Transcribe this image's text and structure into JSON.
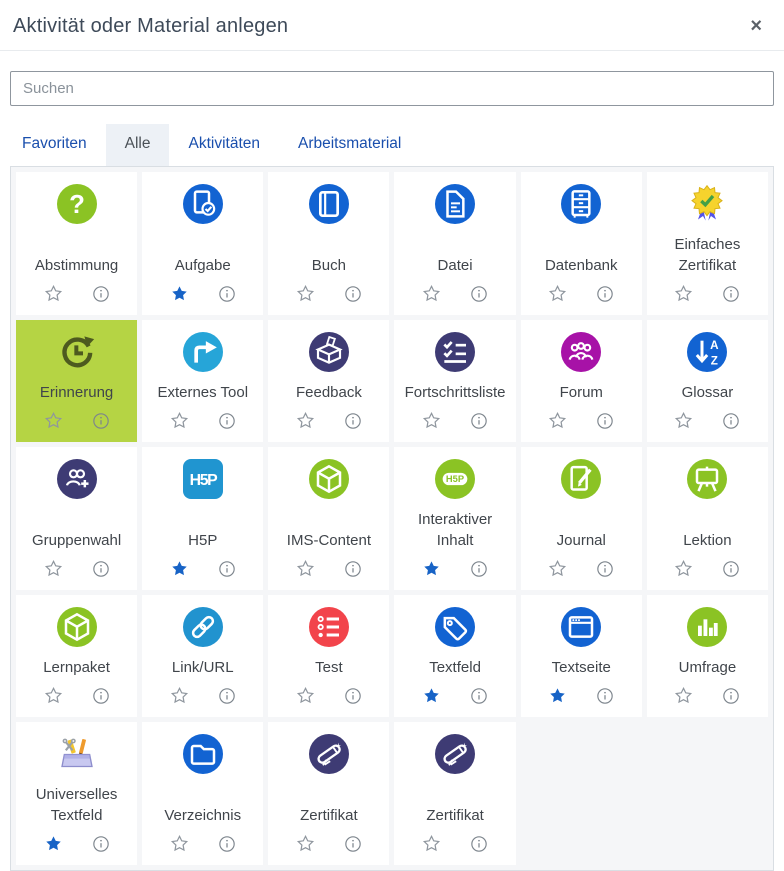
{
  "dialog": {
    "title": "Aktivität oder Material anlegen",
    "close_label": "×"
  },
  "search": {
    "placeholder": "Suchen",
    "value": ""
  },
  "tabs": [
    {
      "label": "Favoriten",
      "active": false
    },
    {
      "label": "Alle",
      "active": true
    },
    {
      "label": "Aktivitäten",
      "active": false
    },
    {
      "label": "Arbeitsmaterial",
      "active": false
    }
  ],
  "colors": {
    "accent_blue": "#1263d2",
    "light_blue": "#26a5d8",
    "link_blue": "#2193cf",
    "green": "#8bc324",
    "indigo": "#3e3b74",
    "magenta": "#a712a7",
    "red": "#f2444b",
    "h5p_blue": "#2095d0",
    "selected_tile_bg": "#b5d444",
    "selected_icon": "#4d5a1f",
    "favourite_star": "#1763c6",
    "tab_link": "#1a4fad"
  },
  "tiles": [
    {
      "label": "Abstimmung",
      "icon": "question-icon",
      "shape": "circle",
      "bg": "#8bc324",
      "favourite": false,
      "selected": false
    },
    {
      "label": "Aufgabe",
      "icon": "assignment-icon",
      "shape": "circle",
      "bg": "#1263d2",
      "favourite": true,
      "selected": false
    },
    {
      "label": "Buch",
      "icon": "book-icon",
      "shape": "circle",
      "bg": "#1263d2",
      "favourite": false,
      "selected": false
    },
    {
      "label": "Datei",
      "icon": "file-icon",
      "shape": "circle",
      "bg": "#1263d2",
      "favourite": false,
      "selected": false
    },
    {
      "label": "Datenbank",
      "icon": "database-icon",
      "shape": "circle",
      "bg": "#1263d2",
      "favourite": false,
      "selected": false
    },
    {
      "label": "Einfaches Zertifikat",
      "icon": "medal-check-icon",
      "shape": "plain",
      "bg": "",
      "favourite": false,
      "selected": false
    },
    {
      "label": "Erinnerung",
      "icon": "clock-history-icon",
      "shape": "plain",
      "bg": "#4d5a1f",
      "favourite": false,
      "selected": true
    },
    {
      "label": "Externes Tool",
      "icon": "external-arrow-icon",
      "shape": "circle",
      "bg": "#26a5d8",
      "favourite": false,
      "selected": false
    },
    {
      "label": "Feedback",
      "icon": "ballot-box-icon",
      "shape": "circle",
      "bg": "#3e3b74",
      "favourite": false,
      "selected": false
    },
    {
      "label": "Fortschrittsliste",
      "icon": "checklist-icon",
      "shape": "circle",
      "bg": "#3e3b74",
      "favourite": false,
      "selected": false
    },
    {
      "label": "Forum",
      "icon": "people-icon",
      "shape": "circle",
      "bg": "#a712a7",
      "favourite": false,
      "selected": false
    },
    {
      "label": "Glossar",
      "icon": "sort-az-icon",
      "shape": "circle",
      "bg": "#1263d2",
      "favourite": false,
      "selected": false
    },
    {
      "label": "Gruppenwahl",
      "icon": "group-plus-icon",
      "shape": "circle",
      "bg": "#3e3b74",
      "favourite": false,
      "selected": false
    },
    {
      "label": "H5P",
      "icon": "h5p-logo-icon",
      "shape": "square",
      "bg": "#2095d0",
      "favourite": true,
      "selected": false
    },
    {
      "label": "IMS-Content",
      "icon": "cube-icon",
      "shape": "circle",
      "bg": "#8bc324",
      "favourite": false,
      "selected": false
    },
    {
      "label": "Interaktiver Inhalt",
      "icon": "h5p-badge-icon",
      "shape": "circle",
      "bg": "#8bc324",
      "favourite": true,
      "selected": false
    },
    {
      "label": "Journal",
      "icon": "note-pencil-icon",
      "shape": "circle",
      "bg": "#8bc324",
      "favourite": false,
      "selected": false
    },
    {
      "label": "Lektion",
      "icon": "easel-icon",
      "shape": "circle",
      "bg": "#8bc324",
      "favourite": false,
      "selected": false
    },
    {
      "label": "Lernpaket",
      "icon": "package-cube-icon",
      "shape": "circle",
      "bg": "#8bc324",
      "favourite": false,
      "selected": false
    },
    {
      "label": "Link/URL",
      "icon": "chain-link-icon",
      "shape": "circle",
      "bg": "#2193cf",
      "favourite": false,
      "selected": false
    },
    {
      "label": "Test",
      "icon": "list-icon",
      "shape": "circle",
      "bg": "#f2444b",
      "favourite": false,
      "selected": false
    },
    {
      "label": "Textfeld",
      "icon": "tag-icon",
      "shape": "circle",
      "bg": "#1263d2",
      "favourite": true,
      "selected": false
    },
    {
      "label": "Textseite",
      "icon": "browser-window-icon",
      "shape": "circle",
      "bg": "#1263d2",
      "favourite": true,
      "selected": false
    },
    {
      "label": "Umfrage",
      "icon": "bar-chart-icon",
      "shape": "circle",
      "bg": "#8bc324",
      "favourite": false,
      "selected": false
    },
    {
      "label": "Universelles Textfeld",
      "icon": "toolbox-icon",
      "shape": "plain",
      "bg": "",
      "favourite": true,
      "selected": false
    },
    {
      "label": "Verzeichnis",
      "icon": "folder-icon",
      "shape": "circle",
      "bg": "#1263d2",
      "favourite": false,
      "selected": false
    },
    {
      "label": "Zertifikat",
      "icon": "diploma-icon",
      "shape": "circle",
      "bg": "#3e3b74",
      "favourite": false,
      "selected": false
    },
    {
      "label": "Zertifikat",
      "icon": "diploma-icon",
      "shape": "circle",
      "bg": "#3e3b74",
      "favourite": false,
      "selected": false
    }
  ]
}
